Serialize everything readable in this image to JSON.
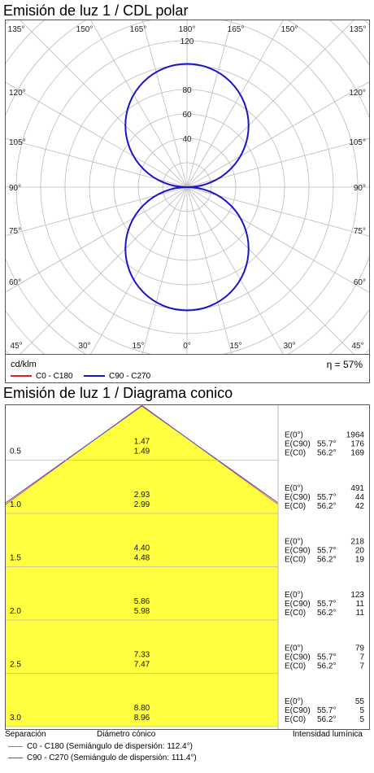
{
  "polar": {
    "title": "Emisión de luz 1 / CDL polar",
    "unit": "cd/klm",
    "efficiency": "η = 57%",
    "legend": [
      {
        "label": "C0 - C180",
        "color": "#e02020"
      },
      {
        "label": "C90 - C270",
        "color": "#1c12c8"
      }
    ]
  },
  "cone": {
    "title": "Emisión de luz 1 / Diagrama conico",
    "footer": {
      "separation": "Separación",
      "diameter": "Diámetro cónico",
      "intensity": "Intensidad lumínica"
    },
    "legend": [
      {
        "label": "C0 - C180 (Semiángulo de dispersión: 112.4°)",
        "color": "#e06060"
      },
      {
        "label": "C90 - C270 (Semiángulo de dispersión: 111.4°)",
        "color": "#5050c0"
      }
    ],
    "label_e0": "E(0°)",
    "label_ec90": "E(C90)",
    "label_ec0": "E(C0)",
    "angle_c90": "55.7°",
    "angle_c0": "56.2°"
  },
  "chart_data": [
    {
      "type": "polar",
      "title": "Emisión de luz 1 / CDL polar",
      "unit": "cd/klm",
      "radial_ticks": [
        40,
        60,
        80,
        120
      ],
      "r_max": 120,
      "angle_ticks_top": [
        "135°",
        "150°",
        "165°",
        "180°",
        "165°",
        "150°",
        "135°"
      ],
      "angle_ticks_side": [
        "120°",
        "105°",
        "90°",
        "75°",
        "60°"
      ],
      "angle_ticks_bottom": [
        "45°",
        "30°",
        "15°",
        "0°",
        "15°",
        "30°",
        "45°"
      ],
      "series": [
        {
          "name": "C0 - C180",
          "peak_intensity": 101,
          "shape": "double-lobe (up/down)"
        },
        {
          "name": "C90 - C270",
          "peak_intensity": 101,
          "shape": "double-lobe (up/down)"
        }
      ],
      "efficiency": "η = 57%"
    },
    {
      "type": "table",
      "title": "Emisión de luz 1 / Diagrama conico",
      "rows": [
        {
          "separation": "0.5",
          "diameter_c0": "1.47",
          "diameter_c90": "1.49",
          "E0": "1964",
          "EC90": "176",
          "EC0": "169"
        },
        {
          "separation": "1.0",
          "diameter_c0": "2.93",
          "diameter_c90": "2.99",
          "E0": "491",
          "EC90": "44",
          "EC0": "42"
        },
        {
          "separation": "1.5",
          "diameter_c0": "4.40",
          "diameter_c90": "4.48",
          "E0": "218",
          "EC90": "20",
          "EC0": "19"
        },
        {
          "separation": "2.0",
          "diameter_c0": "5.86",
          "diameter_c90": "5.98",
          "E0": "123",
          "EC90": "11",
          "EC0": "11"
        },
        {
          "separation": "2.5",
          "diameter_c0": "7.33",
          "diameter_c90": "7.47",
          "E0": "79",
          "EC90": "7",
          "EC0": "7"
        },
        {
          "separation": "3.0",
          "diameter_c0": "8.80",
          "diameter_c90": "8.96",
          "E0": "55",
          "EC90": "5",
          "EC0": "5"
        }
      ],
      "half_angles": {
        "C0 - C180": 112.4,
        "C90 - C270": 111.4
      }
    }
  ]
}
